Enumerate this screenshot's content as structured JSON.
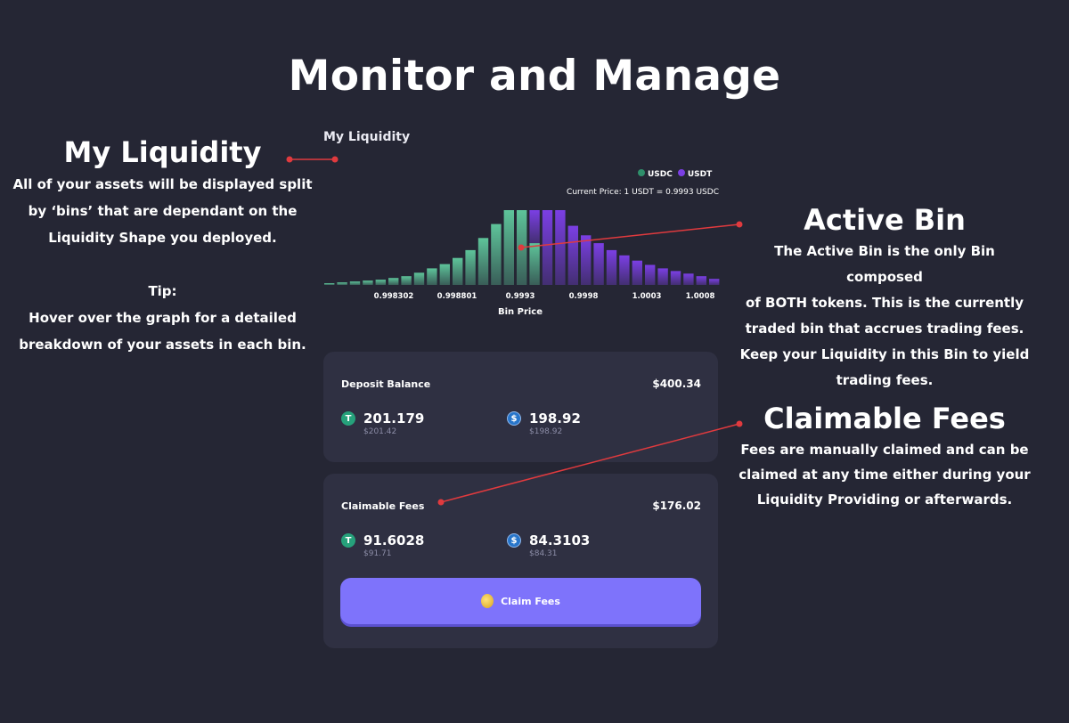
{
  "title": "Monitor and Manage",
  "left_panel": {
    "heading": "My Liquidity",
    "lines": [
      "All of your assets will be displayed split",
      "by ‘bins’ that are dependant on the",
      "Liquidity Shape you deployed."
    ],
    "tip_label": "Tip:",
    "tip_lines": [
      "Hover over the graph for a detailed",
      "breakdown of your assets in each bin."
    ]
  },
  "active_bin_panel": {
    "heading": "Active Bin",
    "lines": [
      "The Active Bin is the only Bin composed",
      "of BOTH tokens. This is the currently",
      "traded bin that accrues trading fees.",
      "Keep your Liquidity in this Bin to yield",
      "trading fees."
    ]
  },
  "claimable_panel": {
    "heading": "Claimable Fees",
    "lines": [
      "Fees are manually claimed and can be",
      "claimed at any time either during your",
      "Liquidity Providing or afterwards."
    ]
  },
  "chart_title": "My Liquidity",
  "legend": {
    "usdc": "USDC",
    "usdt": "USDT"
  },
  "current_price": "Current Price: 1 USDT = 0.9993 USDC",
  "colors": {
    "usdc": "#5ec49a",
    "usdt": "#7b3fe4",
    "accent": "#7e73fb",
    "connector": "#e03a3e"
  },
  "chart_data": {
    "type": "bar",
    "xlabel": "Bin Price",
    "x_tick_labels": [
      "0.998302",
      "0.998801",
      "0.9993",
      "0.9998",
      "1.0003",
      "1.0008"
    ],
    "series": [
      {
        "name": "USDC",
        "values": [
          2,
          3,
          4,
          5,
          6,
          8,
          10,
          14,
          19,
          24,
          31,
          40,
          54,
          70,
          86,
          86,
          48,
          0,
          0,
          0,
          0,
          0,
          0,
          0,
          0,
          0,
          0,
          0,
          0,
          0,
          0
        ]
      },
      {
        "name": "USDT",
        "values": [
          0,
          0,
          0,
          0,
          0,
          0,
          0,
          0,
          0,
          0,
          0,
          0,
          0,
          0,
          0,
          0,
          38,
          86,
          86,
          68,
          57,
          48,
          40,
          34,
          28,
          23,
          19,
          16,
          13,
          10,
          7
        ]
      }
    ],
    "active_bin_index": 16
  },
  "deposit": {
    "label": "Deposit Balance",
    "total": "$400.34",
    "usdt_amount": "201.179",
    "usdt_usd": "$201.42",
    "usdc_amount": "198.92",
    "usdc_usd": "$198.92"
  },
  "fees": {
    "label": "Claimable Fees",
    "total": "$176.02",
    "usdt_amount": "91.6028",
    "usdt_usd": "$91.71",
    "usdc_amount": "84.3103",
    "usdc_usd": "$84.31",
    "button_label": "Claim Fees"
  },
  "icons": {
    "usdt": "tether-icon",
    "usdc": "usdc-icon",
    "coin": "coin-icon"
  }
}
